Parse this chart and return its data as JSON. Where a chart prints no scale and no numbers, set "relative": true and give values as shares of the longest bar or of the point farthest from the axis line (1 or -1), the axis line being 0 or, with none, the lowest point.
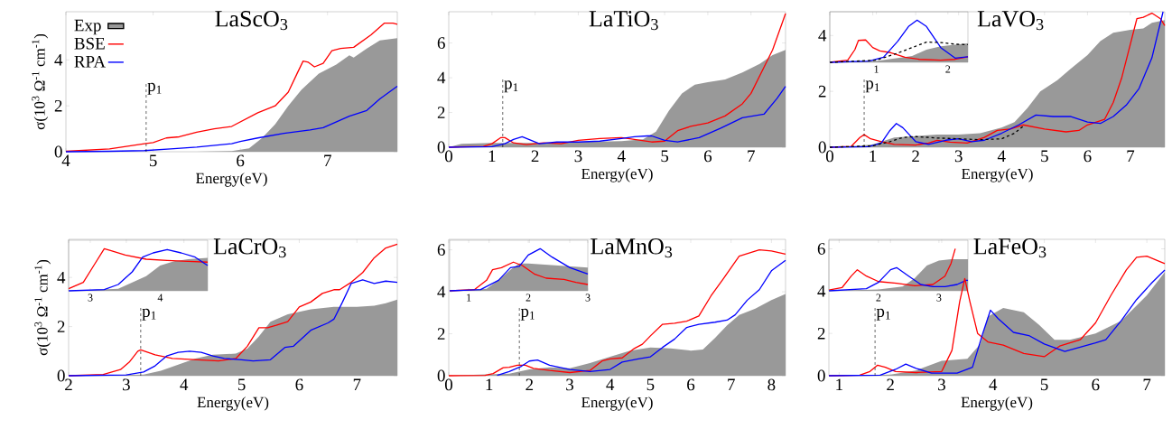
{
  "chart_data": [
    {
      "type": "line",
      "title": "LaScO$_{3}$",
      "xlabel": "Energy(eV)",
      "ylabel": "σ(10$^{3}$ Ω$^{-1}$ cm$^{-1}$)",
      "xlim": [
        4,
        7.8
      ],
      "ylim": [
        0,
        6.1
      ],
      "xticks": [
        4,
        5,
        6,
        7
      ],
      "yticks": [
        0,
        2,
        4
      ],
      "legend": "top left",
      "ref_lines": [
        {
          "axis": "x",
          "value": 4.92,
          "label": "p$_{1}$",
          "color": "#000000",
          "line_style": "dashed"
        }
      ],
      "series": [
        {
          "name": "Exp",
          "type": "area",
          "color": "#999999",
          "x": [
            4,
            5.5,
            5.9,
            6.1,
            6.25,
            6.4,
            6.55,
            6.7,
            6.9,
            7.1,
            7.25,
            7.3,
            7.45,
            7.6,
            7.8
          ],
          "values": [
            0,
            0,
            0.03,
            0.15,
            0.6,
            1.2,
            2.0,
            2.7,
            3.4,
            3.8,
            4.2,
            4.1,
            4.5,
            4.85,
            4.95
          ]
        },
        {
          "name": "BSE",
          "color": "#ff0000",
          "x": [
            4,
            4.5,
            4.9,
            5.0,
            5.15,
            5.3,
            5.5,
            5.7,
            5.9,
            6.0,
            6.2,
            6.4,
            6.55,
            6.65,
            6.72,
            6.78,
            6.85,
            6.95,
            7.05,
            7.15,
            7.3,
            7.5,
            7.65,
            7.75,
            7.8
          ],
          "values": [
            0.02,
            0.12,
            0.35,
            0.4,
            0.6,
            0.65,
            0.85,
            1.0,
            1.1,
            1.3,
            1.7,
            2.0,
            2.6,
            3.4,
            3.95,
            3.9,
            3.7,
            3.85,
            4.4,
            4.5,
            4.55,
            5.1,
            5.6,
            5.6,
            5.55
          ]
        },
        {
          "name": "RPA",
          "color": "#0000ff",
          "x": [
            4,
            4.5,
            4.9,
            5.2,
            5.5,
            5.9,
            6.0,
            6.2,
            6.5,
            6.8,
            6.95,
            7.1,
            7.25,
            7.45,
            7.6,
            7.8
          ],
          "values": [
            0,
            0.02,
            0.05,
            0.12,
            0.2,
            0.35,
            0.45,
            0.6,
            0.8,
            0.95,
            1.05,
            1.3,
            1.55,
            1.8,
            2.3,
            2.85
          ]
        }
      ]
    },
    {
      "type": "line",
      "title": "LaTiO$_{3}$",
      "xlabel": "Energy(eV)",
      "xlim": [
        0,
        7.8
      ],
      "ylim": [
        0,
        7.8
      ],
      "xticks": [
        0,
        1,
        2,
        3,
        4,
        5,
        6,
        7
      ],
      "yticks": [
        0,
        2,
        4,
        6
      ],
      "ref_lines": [
        {
          "axis": "x",
          "value": 1.25,
          "label": "p$_{1}$",
          "color": "#000000",
          "line_style": "dashed"
        }
      ],
      "series": [
        {
          "type": "area",
          "color": "#999999",
          "x": [
            0,
            0.3,
            1.0,
            2.0,
            3.0,
            4.0,
            4.5,
            4.8,
            5.1,
            5.4,
            5.7,
            6.0,
            6.4,
            6.8,
            7.2,
            7.5,
            7.8
          ],
          "values": [
            0,
            0.2,
            0.25,
            0.25,
            0.3,
            0.35,
            0.45,
            0.9,
            2.1,
            3.1,
            3.6,
            3.75,
            3.9,
            4.3,
            4.8,
            5.3,
            5.6
          ]
        },
        {
          "color": "#ff0000",
          "x": [
            0,
            0.8,
            1.0,
            1.2,
            1.3,
            1.5,
            1.8,
            2.2,
            2.6,
            3.0,
            3.5,
            4.0,
            4.3,
            4.7,
            5.0,
            5.3,
            5.6,
            6.0,
            6.4,
            6.8,
            7.0,
            7.3,
            7.5,
            7.8
          ],
          "values": [
            0,
            0.05,
            0.2,
            0.55,
            0.55,
            0.25,
            0.15,
            0.25,
            0.2,
            0.4,
            0.5,
            0.55,
            0.45,
            0.3,
            0.35,
            0.95,
            1.2,
            1.4,
            1.8,
            2.5,
            3.1,
            4.6,
            5.6,
            7.7
          ]
        },
        {
          "color": "#0000ff",
          "x": [
            0,
            1.0,
            1.3,
            1.5,
            1.7,
            1.9,
            2.1,
            2.5,
            3.0,
            3.5,
            4.0,
            4.3,
            4.6,
            4.7,
            5.0,
            5.3,
            5.8,
            6.3,
            6.8,
            7.3,
            7.6,
            7.8
          ],
          "values": [
            0,
            0.03,
            0.2,
            0.45,
            0.6,
            0.4,
            0.2,
            0.3,
            0.3,
            0.35,
            0.5,
            0.6,
            0.65,
            0.65,
            0.4,
            0.3,
            0.55,
            1.1,
            1.7,
            1.9,
            2.8,
            3.5
          ]
        }
      ]
    },
    {
      "type": "line",
      "title": "LaVO$_{3}$",
      "xlabel": "Energy(eV)",
      "xlim": [
        0,
        7.8
      ],
      "ylim": [
        0,
        4.85
      ],
      "xticks": [
        0,
        1,
        2,
        3,
        4,
        5,
        6,
        7
      ],
      "yticks": [
        0,
        2,
        4
      ],
      "ref_lines": [
        {
          "axis": "x",
          "value": 0.8,
          "label": "p$_{1}$",
          "color": "#000000",
          "line_style": "dashed"
        }
      ],
      "series": [
        {
          "type": "area",
          "color": "#999999",
          "x": [
            0,
            0.5,
            1.0,
            1.5,
            2.0,
            2.5,
            3.0,
            3.5,
            4.0,
            4.3,
            4.6,
            4.9,
            5.3,
            5.6,
            6.0,
            6.3,
            6.6,
            7.0,
            7.3,
            7.5,
            7.8
          ],
          "values": [
            0,
            0.03,
            0.1,
            0.35,
            0.4,
            0.45,
            0.45,
            0.5,
            0.7,
            0.9,
            1.4,
            2.0,
            2.4,
            2.8,
            3.3,
            3.8,
            4.1,
            4.2,
            4.25,
            4.45,
            4.55
          ]
        },
        {
          "color": "#ff0000",
          "x": [
            0,
            0.5,
            0.7,
            0.8,
            0.95,
            1.2,
            1.5,
            2.0,
            2.3,
            2.5,
            2.8,
            3.2,
            3.6,
            3.9,
            4.2,
            4.5,
            5.0,
            5.5,
            5.8,
            6.0,
            6.4,
            6.6,
            6.8,
            7.0,
            7.15,
            7.3,
            7.5,
            7.7,
            7.8
          ],
          "values": [
            0,
            0.03,
            0.35,
            0.45,
            0.3,
            0.2,
            0.1,
            0.08,
            0.15,
            0.25,
            0.18,
            0.15,
            0.35,
            0.6,
            0.65,
            0.8,
            0.65,
            0.55,
            0.6,
            0.8,
            1.0,
            1.6,
            2.5,
            3.7,
            4.6,
            4.65,
            4.8,
            4.6,
            4.35
          ]
        },
        {
          "color": "#0000ff",
          "x": [
            0,
            0.9,
            1.2,
            1.4,
            1.55,
            1.7,
            2.0,
            2.3,
            2.7,
            3.0,
            3.3,
            3.6,
            4.0,
            4.4,
            4.8,
            5.2,
            5.6,
            6.0,
            6.3,
            6.6,
            6.9,
            7.2,
            7.5,
            7.76
          ],
          "values": [
            0,
            0.02,
            0.15,
            0.6,
            0.85,
            0.7,
            0.2,
            0.1,
            0.25,
            0.3,
            0.2,
            0.25,
            0.5,
            0.8,
            1.15,
            1.1,
            1.1,
            0.9,
            0.85,
            1.1,
            1.5,
            2.1,
            3.2,
            4.85
          ]
        },
        {
          "color": "#000000",
          "line_style": "dashed",
          "x": [
            0,
            1.0,
            1.4,
            1.7,
            2.0,
            2.5,
            3.0,
            3.5,
            4.0,
            4.3,
            4.5
          ],
          "values": [
            0,
            0.05,
            0.2,
            0.35,
            0.38,
            0.33,
            0.3,
            0.27,
            0.3,
            0.5,
            0.75
          ]
        }
      ]
    },
    {
      "type": "line",
      "relative": true,
      "xlim": [
        0.35,
        2.28
      ],
      "xticks": [
        1,
        2
      ],
      "series": [
        {
          "type": "area",
          "color": "#999999",
          "x": [
            0.35,
            1.0,
            1.3,
            1.5,
            1.7,
            1.9,
            2.1,
            2.28
          ],
          "values": [
            0,
            0.03,
            0.1,
            0.15,
            0.3,
            0.38,
            0.42,
            0.45
          ]
        },
        {
          "color": "#ff0000",
          "x": [
            0.35,
            0.6,
            0.7,
            0.75,
            0.85,
            0.95,
            1.05,
            1.2,
            1.4,
            1.6,
            1.9,
            2.1,
            2.28
          ],
          "values": [
            0,
            0.05,
            0.3,
            0.52,
            0.53,
            0.35,
            0.27,
            0.23,
            0.12,
            0.07,
            0.05,
            0.07,
            0.13
          ]
        },
        {
          "color": "#0000ff",
          "x": [
            0.35,
            0.9,
            1.1,
            1.3,
            1.45,
            1.57,
            1.7,
            1.9,
            2.1,
            2.28
          ],
          "values": [
            0,
            0.03,
            0.12,
            0.5,
            0.85,
            1.0,
            0.85,
            0.35,
            0.1,
            0.13
          ]
        },
        {
          "color": "#000000",
          "line_style": "dashed",
          "x": [
            0.35,
            1.0,
            1.3,
            1.5,
            1.7,
            1.9,
            2.1,
            2.28
          ],
          "values": [
            0,
            0.05,
            0.22,
            0.35,
            0.48,
            0.47,
            0.43,
            0.42
          ]
        }
      ]
    },
    {
      "type": "line",
      "title": "LaCrO$_{3}$",
      "xlabel": "Energy(eV)",
      "ylabel": "σ(10$^{3}$ Ω$^{-1}$ cm$^{-1}$)",
      "xlim": [
        2,
        7.7
      ],
      "ylim": [
        0,
        5.55
      ],
      "xticks": [
        2,
        3,
        4,
        5,
        6,
        7
      ],
      "yticks": [
        0,
        2,
        4
      ],
      "ref_lines": [
        {
          "axis": "x",
          "value": 3.25,
          "label": "p$_{1}$",
          "color": "#000000",
          "line_style": "dashed"
        }
      ],
      "series": [
        {
          "type": "area",
          "color": "#999999",
          "x": [
            2,
            3.3,
            3.6,
            3.9,
            4.2,
            4.5,
            4.9,
            5.1,
            5.3,
            5.5,
            5.8,
            6.2,
            6.6,
            7.0,
            7.3,
            7.5,
            7.7
          ],
          "values": [
            0,
            0.05,
            0.2,
            0.45,
            0.7,
            0.85,
            0.9,
            1.1,
            1.6,
            2.2,
            2.5,
            2.7,
            2.8,
            2.8,
            2.85,
            2.95,
            3.1
          ]
        },
        {
          "color": "#ff0000",
          "x": [
            2,
            2.6,
            2.9,
            3.05,
            3.2,
            3.25,
            3.5,
            3.8,
            4.2,
            4.6,
            4.9,
            5.1,
            5.3,
            5.45,
            5.6,
            5.8,
            6.0,
            6.2,
            6.4,
            6.6,
            6.7,
            6.9,
            7.1,
            7.3,
            7.5,
            7.7
          ],
          "values": [
            0,
            0.05,
            0.25,
            0.55,
            1.0,
            1.05,
            0.85,
            0.7,
            0.65,
            0.6,
            0.7,
            1.2,
            1.95,
            1.95,
            2.05,
            2.2,
            2.8,
            3.0,
            3.35,
            3.5,
            3.5,
            3.8,
            4.2,
            4.8,
            5.2,
            5.35
          ]
        },
        {
          "color": "#0000ff",
          "x": [
            2,
            3.0,
            3.3,
            3.5,
            3.7,
            3.9,
            4.1,
            4.3,
            4.5,
            4.7,
            5.0,
            5.2,
            5.5,
            5.75,
            5.9,
            6.2,
            6.5,
            6.6,
            6.75,
            6.9,
            7.1,
            7.3,
            7.5,
            7.7
          ],
          "values": [
            0,
            0.03,
            0.15,
            0.4,
            0.8,
            0.95,
            1.0,
            0.95,
            0.8,
            0.7,
            0.65,
            0.6,
            0.65,
            1.15,
            1.2,
            1.85,
            2.15,
            2.3,
            3.0,
            3.75,
            3.9,
            3.75,
            3.85,
            3.8
          ]
        }
      ]
    },
    {
      "type": "line",
      "relative": true,
      "xlim": [
        2.69,
        4.68
      ],
      "xticks": [
        3,
        4
      ],
      "series": [
        {
          "type": "area",
          "color": "#999999",
          "x": [
            2.69,
            3.4,
            3.6,
            3.8,
            4.0,
            4.2,
            4.4,
            4.68
          ],
          "values": [
            0,
            0.05,
            0.2,
            0.35,
            0.6,
            0.7,
            0.75,
            0.78
          ]
        },
        {
          "color": "#ff0000",
          "x": [
            2.69,
            2.9,
            3.05,
            3.2,
            3.3,
            3.5,
            3.8,
            4.1,
            4.4,
            4.68
          ],
          "values": [
            0.05,
            0.2,
            0.6,
            1.0,
            0.95,
            0.85,
            0.75,
            0.72,
            0.7,
            0.68
          ]
        },
        {
          "color": "#0000ff",
          "x": [
            2.69,
            3.2,
            3.4,
            3.6,
            3.75,
            3.9,
            4.1,
            4.3,
            4.5,
            4.68
          ],
          "values": [
            0,
            0.03,
            0.15,
            0.45,
            0.8,
            0.9,
            0.98,
            0.9,
            0.8,
            0.6
          ]
        }
      ]
    },
    {
      "type": "line",
      "title": "LaMnO$_{3}$",
      "xlabel": "Energy(eV)",
      "xlim": [
        0,
        8.35
      ],
      "ylim": [
        0,
        6.5
      ],
      "xticks": [
        0,
        1,
        2,
        3,
        4,
        5,
        6,
        7,
        8
      ],
      "yticks": [
        0,
        2,
        4,
        6
      ],
      "ref_lines": [
        {
          "axis": "x",
          "value": 1.75,
          "label": "p$_{1}$",
          "color": "#000000",
          "line_style": "dashed"
        }
      ],
      "series": [
        {
          "type": "area",
          "color": "#999999",
          "x": [
            0,
            1.5,
            2.0,
            2.5,
            3.0,
            3.5,
            4.0,
            4.5,
            5.0,
            5.5,
            6.0,
            6.3,
            6.6,
            6.9,
            7.2,
            7.6,
            8.0,
            8.35
          ],
          "values": [
            0,
            0.1,
            0.3,
            0.4,
            0.35,
            0.6,
            0.9,
            1.2,
            1.35,
            1.3,
            1.2,
            1.25,
            1.8,
            2.4,
            2.9,
            3.2,
            3.6,
            3.9
          ]
        },
        {
          "color": "#ff0000",
          "x": [
            0,
            0.9,
            1.1,
            1.35,
            1.5,
            1.7,
            1.9,
            2.1,
            2.5,
            3.0,
            3.5,
            3.8,
            4.0,
            4.3,
            4.6,
            4.8,
            5.0,
            5.3,
            5.6,
            5.9,
            6.2,
            6.5,
            6.8,
            7.2,
            7.7,
            8.0,
            8.35
          ],
          "values": [
            0,
            0.02,
            0.1,
            0.38,
            0.4,
            0.5,
            0.5,
            0.35,
            0.25,
            0.15,
            0.25,
            0.7,
            0.8,
            0.85,
            1.3,
            1.5,
            1.9,
            2.45,
            2.5,
            2.6,
            2.85,
            3.8,
            4.6,
            5.7,
            6.0,
            5.95,
            5.8
          ]
        },
        {
          "color": "#0000ff",
          "x": [
            1.2,
            1.5,
            1.8,
            2.0,
            2.2,
            2.5,
            3.0,
            3.5,
            4.0,
            4.3,
            4.7,
            5.0,
            5.3,
            5.6,
            5.9,
            6.2,
            6.6,
            6.9,
            7.1,
            7.4,
            7.7,
            8.0,
            8.35
          ],
          "values": [
            0.02,
            0.2,
            0.45,
            0.7,
            0.75,
            0.5,
            0.3,
            0.2,
            0.3,
            0.65,
            0.8,
            0.9,
            1.35,
            1.75,
            2.3,
            2.45,
            2.55,
            2.65,
            2.9,
            3.6,
            4.1,
            5.0,
            5.5
          ]
        }
      ]
    },
    {
      "type": "line",
      "relative": true,
      "xlim": [
        0.68,
        3.0
      ],
      "xticks": [
        1,
        2,
        3
      ],
      "series": [
        {
          "type": "area",
          "color": "#999999",
          "x": [
            0.68,
            1.3,
            1.5,
            1.7,
            1.85,
            2.0,
            2.5,
            3.0
          ],
          "values": [
            0,
            0.05,
            0.25,
            0.5,
            0.65,
            0.65,
            0.6,
            0.55
          ]
        },
        {
          "color": "#ff0000",
          "x": [
            0.68,
            1.1,
            1.3,
            1.4,
            1.55,
            1.75,
            1.9,
            2.1,
            2.3,
            2.6,
            2.8,
            3.0
          ],
          "values": [
            0,
            0.03,
            0.25,
            0.5,
            0.55,
            0.68,
            0.6,
            0.4,
            0.3,
            0.27,
            0.2,
            0.15
          ]
        },
        {
          "color": "#0000ff",
          "x": [
            0.68,
            1.2,
            1.5,
            1.7,
            1.85,
            2.0,
            2.2,
            2.4,
            2.7,
            3.0
          ],
          "values": [
            0,
            0.03,
            0.25,
            0.55,
            0.58,
            0.85,
            1.0,
            0.8,
            0.55,
            0.4
          ]
        }
      ]
    },
    {
      "type": "line",
      "title": "LaFeO$_{3}$",
      "xlabel": "Energy(eV)",
      "xlim": [
        0.8,
        7.35
      ],
      "ylim": [
        0,
        6.45
      ],
      "xticks": [
        1,
        2,
        3,
        4,
        5,
        6,
        7
      ],
      "yticks": [
        0,
        2,
        4,
        6
      ],
      "ref_lines": [
        {
          "axis": "x",
          "value": 1.7,
          "label": "p$_{1}$",
          "color": "#000000",
          "line_style": "dashed"
        }
      ],
      "series": [
        {
          "type": "area",
          "color": "#999999",
          "x": [
            0.8,
            2.0,
            2.5,
            3.0,
            3.5,
            3.75,
            3.9,
            4.2,
            4.6,
            4.9,
            5.2,
            5.5,
            6.0,
            6.5,
            7.0,
            7.35
          ],
          "values": [
            0,
            0.05,
            0.25,
            0.7,
            0.8,
            1.5,
            2.8,
            3.2,
            3.0,
            2.4,
            1.7,
            1.7,
            2.0,
            2.6,
            3.8,
            4.9
          ]
        },
        {
          "color": "#ff0000",
          "x": [
            0.8,
            1.4,
            1.6,
            1.75,
            1.9,
            2.1,
            2.5,
            3.0,
            3.2,
            3.35,
            3.45,
            3.55,
            3.7,
            3.9,
            4.2,
            4.6,
            5.0,
            5.3,
            5.7,
            6.0,
            6.3,
            6.6,
            6.8,
            7.0,
            7.2,
            7.35
          ],
          "values": [
            0,
            0.03,
            0.2,
            0.5,
            0.4,
            0.2,
            0.15,
            0.2,
            1.2,
            3.5,
            4.6,
            3.5,
            2.0,
            1.6,
            1.45,
            1.05,
            0.9,
            1.4,
            1.7,
            2.5,
            3.8,
            5.0,
            5.6,
            5.65,
            5.45,
            5.3
          ]
        },
        {
          "color": "#0000ff",
          "x": [
            0.8,
            1.8,
            2.1,
            2.3,
            2.5,
            2.8,
            3.3,
            3.6,
            3.8,
            3.95,
            4.1,
            4.4,
            4.7,
            5.0,
            5.4,
            5.7,
            6.0,
            6.2,
            6.5,
            6.8,
            7.1,
            7.35
          ],
          "values": [
            0,
            0.03,
            0.3,
            0.55,
            0.35,
            0.12,
            0.12,
            0.4,
            2.0,
            3.1,
            2.7,
            2.05,
            1.9,
            1.5,
            1.15,
            1.35,
            1.55,
            1.7,
            2.6,
            3.6,
            4.4,
            5.0
          ]
        }
      ]
    },
    {
      "type": "line",
      "relative": true,
      "xlim": [
        1.18,
        3.48
      ],
      "xticks": [
        2,
        3
      ],
      "series": [
        {
          "type": "area",
          "color": "#999999",
          "x": [
            1.18,
            2.0,
            2.4,
            2.6,
            2.8,
            3.0,
            3.2,
            3.48
          ],
          "values": [
            0,
            0.03,
            0.1,
            0.3,
            0.6,
            0.72,
            0.75,
            0.75
          ]
        },
        {
          "color": "#ff0000",
          "x": [
            1.18,
            1.4,
            1.55,
            1.65,
            1.8,
            2.0,
            2.3,
            2.6,
            2.9,
            3.1,
            3.2,
            3.27
          ],
          "values": [
            0.02,
            0.08,
            0.35,
            0.5,
            0.35,
            0.22,
            0.18,
            0.12,
            0.15,
            0.35,
            0.65,
            1.0
          ]
        },
        {
          "color": "#0000ff",
          "x": [
            1.18,
            1.8,
            2.0,
            2.2,
            2.3,
            2.5,
            2.7,
            2.9,
            3.1,
            3.3,
            3.45,
            3.48
          ],
          "values": [
            0,
            0.05,
            0.2,
            0.5,
            0.55,
            0.35,
            0.15,
            0.1,
            0.1,
            0.15,
            0.25,
            0.25
          ]
        }
      ]
    }
  ]
}
